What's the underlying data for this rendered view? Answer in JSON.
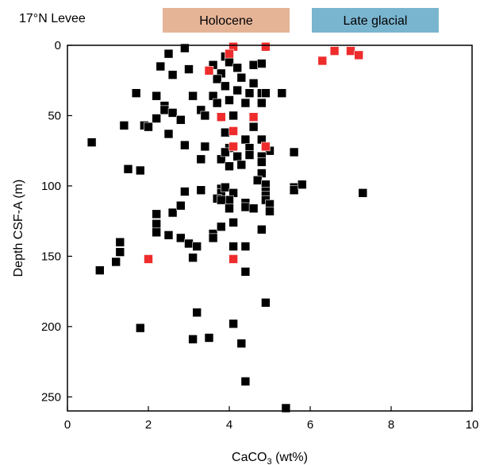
{
  "chart_data": {
    "type": "scatter",
    "title": "17°N Levee",
    "xlabel_main": "CaCO",
    "xlabel_sub": "3",
    "xlabel_unit": " (wt%)",
    "ylabel": "Depth CSF-A (m)",
    "xlim": [
      0,
      10
    ],
    "ylim": [
      0,
      260
    ],
    "y_inverted": true,
    "x_ticks": [
      "0",
      "2",
      "4",
      "6",
      "8",
      "10"
    ],
    "y_ticks": [
      "0",
      "50",
      "100",
      "150",
      "200",
      "250"
    ],
    "grid": false,
    "legend": [
      {
        "label": "Holocene",
        "color": "#e5b497"
      },
      {
        "label": "Late glacial",
        "color": "#7ab5cf"
      }
    ],
    "series": [
      {
        "color": "#000000",
        "points": [
          [
            2.9,
            2
          ],
          [
            2.5,
            6
          ],
          [
            2.3,
            15
          ],
          [
            3.0,
            17
          ],
          [
            2.6,
            21
          ],
          [
            3.9,
            8
          ],
          [
            3.6,
            14
          ],
          [
            4.0,
            12
          ],
          [
            4.2,
            16
          ],
          [
            4.6,
            14
          ],
          [
            4.8,
            13
          ],
          [
            3.8,
            20
          ],
          [
            3.7,
            24
          ],
          [
            4.3,
            23
          ],
          [
            3.9,
            29
          ],
          [
            4.6,
            27
          ],
          [
            4.2,
            32
          ],
          [
            1.7,
            34
          ],
          [
            2.2,
            36
          ],
          [
            3.1,
            36
          ],
          [
            3.6,
            36
          ],
          [
            4.5,
            34
          ],
          [
            4.8,
            34
          ],
          [
            4.9,
            34
          ],
          [
            5.3,
            34
          ],
          [
            2.4,
            43
          ],
          [
            2.4,
            46
          ],
          [
            3.7,
            41
          ],
          [
            4.0,
            39
          ],
          [
            4.4,
            41
          ],
          [
            4.8,
            41
          ],
          [
            2.2,
            52
          ],
          [
            2.6,
            48
          ],
          [
            2.8,
            53
          ],
          [
            3.3,
            46
          ],
          [
            3.4,
            50
          ],
          [
            4.1,
            50
          ],
          [
            1.4,
            57
          ],
          [
            1.9,
            57
          ],
          [
            2.0,
            58
          ],
          [
            2.5,
            63
          ],
          [
            3.9,
            62
          ],
          [
            4.6,
            58
          ],
          [
            0.6,
            69
          ],
          [
            2.9,
            71
          ],
          [
            3.4,
            72
          ],
          [
            4.0,
            73
          ],
          [
            4.4,
            67
          ],
          [
            4.5,
            73
          ],
          [
            4.8,
            67
          ],
          [
            4.9,
            72
          ],
          [
            5.0,
            75
          ],
          [
            3.3,
            81
          ],
          [
            3.8,
            81
          ],
          [
            3.9,
            76
          ],
          [
            4.2,
            79
          ],
          [
            4.5,
            78
          ],
          [
            4.8,
            79
          ],
          [
            5.6,
            76
          ],
          [
            1.5,
            88
          ],
          [
            1.8,
            89
          ],
          [
            4.0,
            86
          ],
          [
            4.3,
            85
          ],
          [
            4.8,
            83
          ],
          [
            4.8,
            91
          ],
          [
            2.9,
            104
          ],
          [
            3.3,
            103
          ],
          [
            3.8,
            102
          ],
          [
            3.8,
            105
          ],
          [
            3.9,
            101
          ],
          [
            4.1,
            105
          ],
          [
            4.0,
            110
          ],
          [
            4.7,
            96
          ],
          [
            4.9,
            99
          ],
          [
            4.9,
            104
          ],
          [
            4.9,
            107
          ],
          [
            4.9,
            110
          ],
          [
            5.6,
            101
          ],
          [
            5.6,
            103
          ],
          [
            5.8,
            99
          ],
          [
            7.3,
            105
          ],
          [
            3.7,
            109
          ],
          [
            3.8,
            110
          ],
          [
            4.0,
            116
          ],
          [
            4.4,
            112
          ],
          [
            4.4,
            115
          ],
          [
            4.6,
            116
          ],
          [
            5.0,
            113
          ],
          [
            5.0,
            118
          ],
          [
            2.2,
            120
          ],
          [
            2.6,
            119
          ],
          [
            2.8,
            114
          ],
          [
            2.2,
            127
          ],
          [
            2.2,
            133
          ],
          [
            2.5,
            135
          ],
          [
            2.8,
            137
          ],
          [
            3.6,
            134
          ],
          [
            3.6,
            137
          ],
          [
            3.8,
            129
          ],
          [
            4.1,
            126
          ],
          [
            4.8,
            131
          ],
          [
            1.3,
            140
          ],
          [
            1.3,
            147
          ],
          [
            1.2,
            154
          ],
          [
            3.0,
            141
          ],
          [
            3.2,
            143
          ],
          [
            3.1,
            151
          ],
          [
            4.1,
            143
          ],
          [
            4.4,
            143
          ],
          [
            0.8,
            160
          ],
          [
            4.4,
            161
          ],
          [
            4.9,
            183
          ],
          [
            3.2,
            190
          ],
          [
            1.8,
            201
          ],
          [
            4.1,
            198
          ],
          [
            3.1,
            209
          ],
          [
            3.5,
            208
          ],
          [
            4.3,
            212
          ],
          [
            4.4,
            239
          ],
          [
            5.4,
            258
          ]
        ]
      },
      {
        "color": "#ee2c2c",
        "points": [
          [
            4.1,
            1
          ],
          [
            4.9,
            1
          ],
          [
            4.0,
            6
          ],
          [
            3.5,
            18
          ],
          [
            3.8,
            51
          ],
          [
            4.6,
            51
          ],
          [
            4.1,
            61
          ],
          [
            4.1,
            72
          ],
          [
            4.9,
            72
          ],
          [
            2.0,
            152
          ],
          [
            4.1,
            152
          ],
          [
            6.3,
            11
          ],
          [
            6.6,
            4
          ],
          [
            7.0,
            4
          ],
          [
            7.2,
            7
          ]
        ]
      }
    ]
  }
}
